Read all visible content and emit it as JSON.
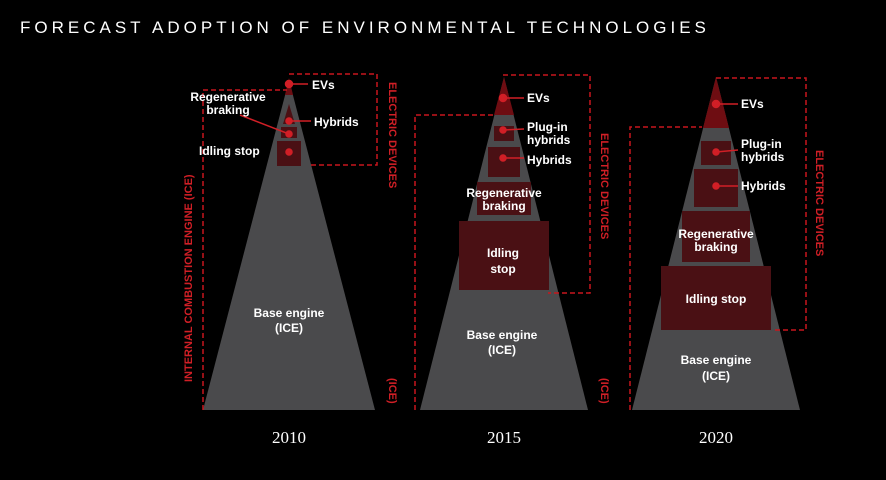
{
  "title": "FORECAST ADOPTION OF ENVIRONMENTAL TECHNOLOGIES",
  "panels": [
    {
      "year": "2010",
      "ev": "EVs",
      "hybrids": "Hybrids",
      "regen": "Regenerative braking",
      "regen1": "Regenerative",
      "regen2": "braking",
      "idling": "Idling stop",
      "base1": "Base engine",
      "base2": "(ICE)",
      "ice_label": "INTERNAL COMBUSTION ENGINE (ICE)",
      "ice_short": "(ICE)",
      "electric": "ELECTRIC DEVICES"
    },
    {
      "year": "2015",
      "ev": "EVs",
      "plugin1": "Plug-in",
      "plugin2": "hybrids",
      "hybrids": "Hybrids",
      "regen1": "Regenerative",
      "regen2": "braking",
      "idling1": "Idling",
      "idling2": "stop",
      "base1": "Base engine",
      "base2": "(ICE)",
      "ice_short": "(ICE)",
      "electric": "ELECTRIC DEVICES"
    },
    {
      "year": "2020",
      "ev": "EVs",
      "plugin1": "Plug-in",
      "plugin2": "hybrids",
      "hybrids": "Hybrids",
      "regen1": "Regenerative",
      "regen2": "braking",
      "idling": "Idling stop",
      "base1": "Base engine",
      "base2": "(ICE)",
      "electric": "ELECTRIC DEVICES"
    }
  ],
  "colors": {
    "gray": "#4a4a4c",
    "darkred": "#4a1014",
    "ev": "#6e0d12",
    "accent": "#d11f26"
  }
}
